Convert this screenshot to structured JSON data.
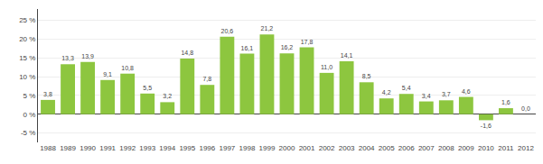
{
  "chart_data": {
    "type": "bar",
    "categories": [
      "1988",
      "1989",
      "1990",
      "1991",
      "1992",
      "1993",
      "1994",
      "1995",
      "1996",
      "1997",
      "1998",
      "1999",
      "2000",
      "2001",
      "2002",
      "2003",
      "2004",
      "2005",
      "2006",
      "2007",
      "2008",
      "2009",
      "2010",
      "2011",
      "2012"
    ],
    "values": [
      3.8,
      13.3,
      13.9,
      9.1,
      10.8,
      5.5,
      3.2,
      14.8,
      7.8,
      20.6,
      16.1,
      21.2,
      16.2,
      17.8,
      11.0,
      14.1,
      8.5,
      4.2,
      5.4,
      3.4,
      3.7,
      4.6,
      -1.6,
      1.6,
      0.0
    ],
    "value_labels": [
      "3,8",
      "13,3",
      "13,9",
      "9,1",
      "10,8",
      "5,5",
      "3,2",
      "14,8",
      "7,8",
      "20,6",
      "16,1",
      "21,2",
      "16,2",
      "17,8",
      "11,0",
      "14,1",
      "8,5",
      "4,2",
      "5,4",
      "3,4",
      "3,7",
      "4,6",
      "-1,6",
      "1,6",
      "0,0"
    ],
    "color": "#8dc63f",
    "ylim": [
      -7.5,
      28
    ],
    "yticks": [
      {
        "value": -5,
        "label": "-5 %"
      },
      {
        "value": 0,
        "label": "0 %"
      },
      {
        "value": 5,
        "label": "5 %"
      },
      {
        "value": 10,
        "label": "10 %"
      },
      {
        "value": 15,
        "label": "15 %"
      },
      {
        "value": 20,
        "label": "20 %"
      },
      {
        "value": 25,
        "label": "25 %"
      }
    ],
    "grid": true,
    "data_labels": true
  }
}
